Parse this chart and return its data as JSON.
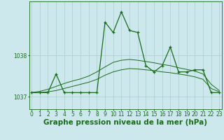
{
  "title": "Graphe pression niveau de la mer (hPa)",
  "background_color": "#cce8ed",
  "grid_color": "#aacccc",
  "line_color": "#1a6b1a",
  "x_values": [
    0,
    1,
    2,
    3,
    4,
    5,
    6,
    7,
    8,
    9,
    10,
    11,
    12,
    13,
    14,
    15,
    16,
    17,
    18,
    19,
    20,
    21,
    22,
    23
  ],
  "y_main": [
    1037.1,
    1037.1,
    1037.1,
    1037.55,
    1037.1,
    1037.1,
    1037.1,
    1037.1,
    1037.1,
    1038.8,
    1038.55,
    1039.05,
    1038.6,
    1038.55,
    1037.75,
    1037.6,
    1037.75,
    1038.2,
    1037.6,
    1037.6,
    1037.65,
    1037.65,
    1037.1,
    1037.1
  ],
  "y_smooth1": [
    1037.1,
    1037.13,
    1037.18,
    1037.25,
    1037.32,
    1037.38,
    1037.43,
    1037.5,
    1037.6,
    1037.72,
    1037.83,
    1037.88,
    1037.9,
    1037.88,
    1037.85,
    1037.82,
    1037.78,
    1037.75,
    1037.7,
    1037.66,
    1037.62,
    1037.55,
    1037.3,
    1037.15
  ],
  "y_smooth2": [
    1037.1,
    1037.1,
    1037.12,
    1037.15,
    1037.2,
    1037.25,
    1037.3,
    1037.35,
    1037.42,
    1037.52,
    1037.6,
    1037.65,
    1037.68,
    1037.67,
    1037.65,
    1037.63,
    1037.6,
    1037.58,
    1037.55,
    1037.52,
    1037.48,
    1037.42,
    1037.2,
    1037.12
  ],
  "ylim": [
    1036.7,
    1039.3
  ],
  "yticks": [
    1037.0,
    1038.0
  ],
  "xlim": [
    -0.3,
    23.3
  ],
  "title_fontsize": 7.5,
  "tick_fontsize": 5.5
}
